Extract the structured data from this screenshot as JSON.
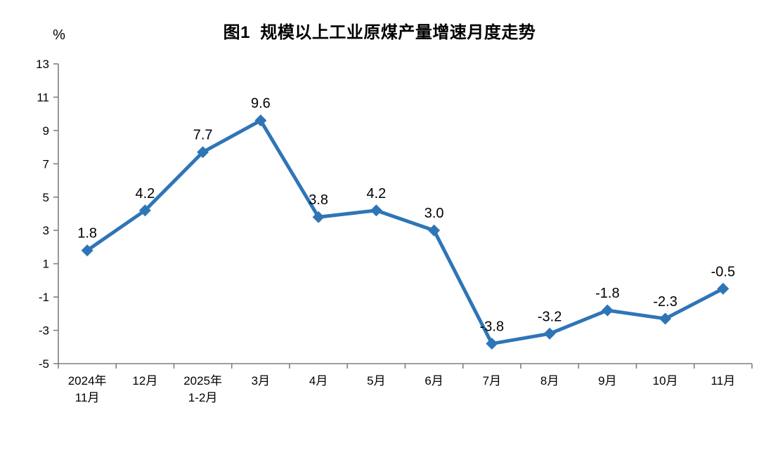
{
  "page": {
    "background_color": "#ffffff"
  },
  "chart_data": {
    "type": "line",
    "title": "图1  规模以上工业原煤产量增速月度走势",
    "ylabel": "%",
    "xlabel": "",
    "categories": [
      "2024年\n11月",
      "12月",
      "2025年\n1-2月",
      "3月",
      "4月",
      "5月",
      "6月",
      "7月",
      "8月",
      "9月",
      "10月",
      "11月"
    ],
    "series": [
      {
        "name": "规模以上工业原煤产量增速",
        "values": [
          1.8,
          4.2,
          7.7,
          9.6,
          3.8,
          4.2,
          3.0,
          -3.8,
          -3.2,
          -1.8,
          -2.3,
          -0.5
        ]
      }
    ],
    "data_labels": [
      "1.8",
      "4.2",
      "7.7",
      "9.6",
      "3.8",
      "4.2",
      "3.0",
      "-3.8",
      "-3.2",
      "-1.8",
      "-2.3",
      "-0.5"
    ],
    "ylim": [
      -5,
      13
    ],
    "yticks": [
      13,
      11,
      9,
      7,
      5,
      3,
      1,
      -1,
      -3,
      -5
    ],
    "grid": false,
    "legend_position": "none",
    "marker": "diamond",
    "line_color": "#2E75B6",
    "axis_color": "#7F7F7F",
    "text_color": "#000000"
  }
}
